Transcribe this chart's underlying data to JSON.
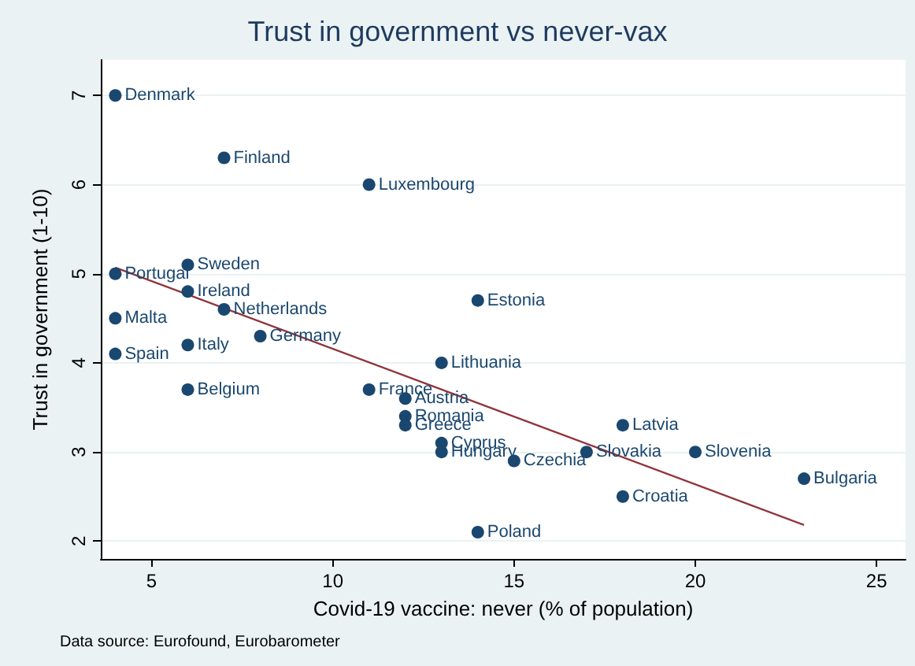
{
  "chart_data": {
    "type": "scatter",
    "title": "Trust in government vs never-vax",
    "xlabel": "Covid-19 vaccine: never (% of population)",
    "ylabel": "Trust in government (1-10)",
    "annotations": [
      "Data source: Eurofound, Eurobarometer"
    ],
    "xlim": [
      3.6,
      25.8
    ],
    "xticks": [
      5,
      10,
      15,
      20,
      25
    ],
    "ylim": [
      1.8,
      7.4
    ],
    "yticks": [
      2,
      3,
      4,
      5,
      6,
      7
    ],
    "grid": "y",
    "series": [
      {
        "marker": "circle",
        "color": "#1a476f",
        "x": [
          4,
          7,
          11,
          6,
          4,
          6,
          7,
          14,
          4,
          8,
          6,
          4,
          13,
          6,
          11,
          12,
          12,
          12,
          18,
          13,
          13,
          17,
          20,
          15,
          23,
          18,
          14
        ],
        "values": [
          7,
          6.3,
          6.0,
          5.1,
          5.0,
          4.8,
          4.6,
          4.7,
          4.5,
          4.3,
          4.2,
          4.1,
          4.0,
          3.7,
          3.7,
          3.6,
          3.4,
          3.3,
          3.3,
          3.1,
          3.0,
          3.0,
          3.0,
          2.9,
          2.7,
          2.5,
          2.1
        ],
        "value_labels": [
          "Denmark",
          "Finland",
          "Luxembourg",
          "Sweden",
          "Portugal",
          "Ireland",
          "Netherlands",
          "Estonia",
          "Malta",
          "Germany",
          "Italy",
          "Spain",
          "Lithuania",
          "Belgium",
          "France",
          "Austria",
          "Romania",
          "Greece",
          "Latvia",
          "Cyprus",
          "Hungary",
          "Slovakia",
          "Slovenia",
          "Czechia",
          "Bulgaria",
          "Croatia",
          "Poland"
        ]
      },
      {
        "type": "line",
        "marker": "none",
        "color": "#90353b",
        "x": [
          4,
          23
        ],
        "values": [
          5.07,
          2.18
        ]
      }
    ]
  }
}
